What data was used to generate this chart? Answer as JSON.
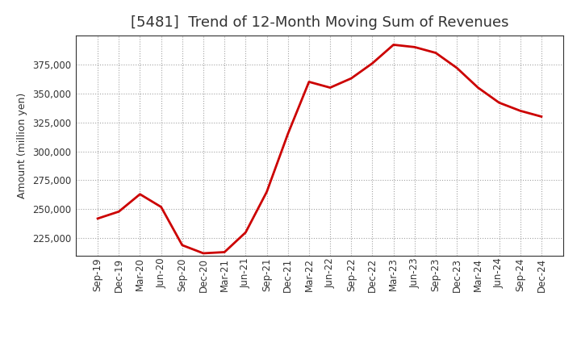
{
  "title": "[5481]  Trend of 12-Month Moving Sum of Revenues",
  "ylabel": "Amount (million yen)",
  "line_color": "#cc0000",
  "line_width": 2.0,
  "background_color": "#ffffff",
  "grid_color": "#999999",
  "tick_labels": [
    "Sep-19",
    "Dec-19",
    "Mar-20",
    "Jun-20",
    "Sep-20",
    "Dec-20",
    "Mar-21",
    "Jun-21",
    "Sep-21",
    "Dec-21",
    "Mar-22",
    "Jun-22",
    "Sep-22",
    "Dec-22",
    "Mar-23",
    "Jun-23",
    "Sep-23",
    "Dec-23",
    "Mar-24",
    "Jun-24",
    "Sep-24",
    "Dec-24"
  ],
  "values": [
    242000,
    248000,
    263000,
    252000,
    219000,
    212000,
    213000,
    230000,
    265000,
    315000,
    360000,
    355000,
    363000,
    376000,
    392000,
    390000,
    385000,
    372000,
    355000,
    342000,
    335000,
    330000
  ],
  "ylim": [
    210000,
    400000
  ],
  "yticks": [
    225000,
    250000,
    275000,
    300000,
    325000,
    350000,
    375000
  ],
  "title_fontsize": 13,
  "title_color": "#333333",
  "tick_fontsize": 8.5,
  "ylabel_fontsize": 9
}
